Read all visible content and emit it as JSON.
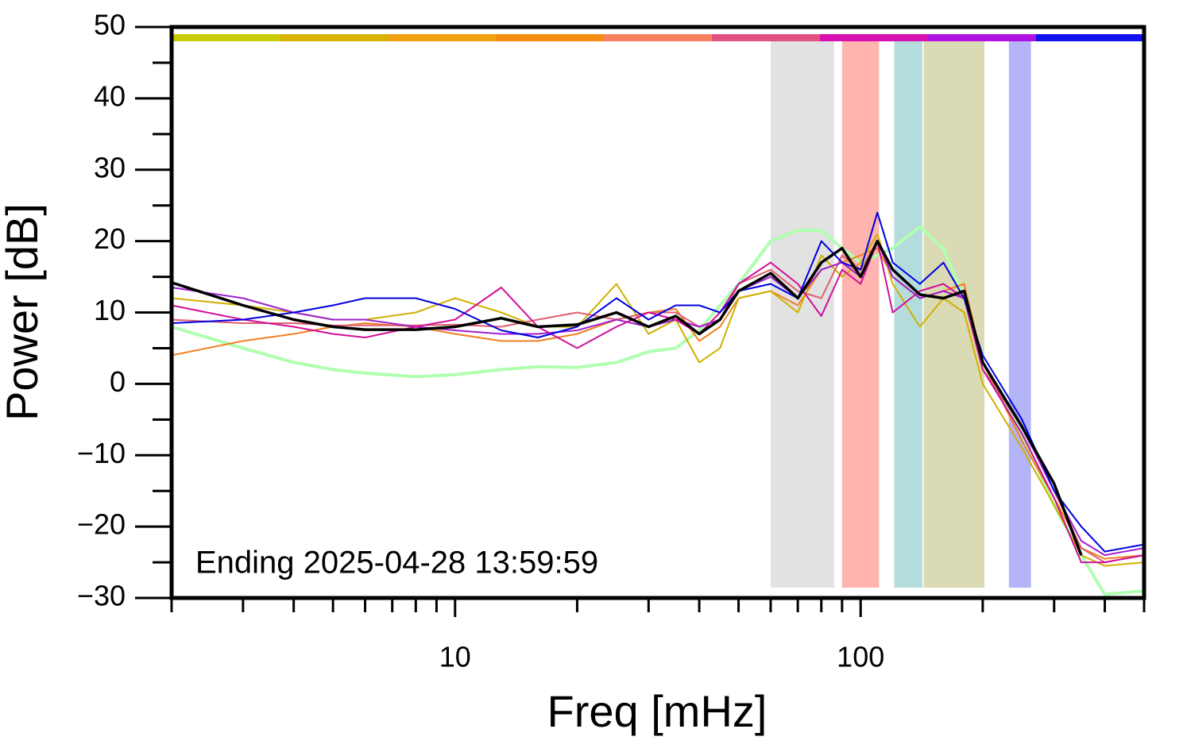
{
  "chart_data": {
    "type": "line",
    "xlabel": "Freq [mHz]",
    "ylabel": "Power [dB]",
    "annotation": "Ending 2025-04-28 13:59:59",
    "log_x": true,
    "xlim": [
      2,
      500
    ],
    "ylim": [
      -30,
      50
    ],
    "xticks": [
      10,
      100
    ],
    "xminorticks": [
      2,
      3,
      4,
      5,
      6,
      7,
      8,
      9,
      20,
      30,
      40,
      50,
      60,
      70,
      80,
      90,
      200,
      300,
      400,
      500
    ],
    "yticks": [
      {
        "value": -30,
        "label": "−30"
      },
      {
        "value": -20,
        "label": "−20"
      },
      {
        "value": -10,
        "label": "−10"
      },
      0,
      10,
      20,
      30,
      40,
      50
    ],
    "yminorticks": [
      -25,
      -15,
      -5,
      5,
      15,
      25,
      35,
      45
    ],
    "color_bar": [
      "#c8cc00",
      "#d8b400",
      "#f0a010",
      "#f58c10",
      "#f88060",
      "#e05080",
      "#d810b0",
      "#b010e0",
      "#1010f0"
    ],
    "bands": [
      {
        "x0": 60,
        "x1": 86,
        "color": "#e2e2e2"
      },
      {
        "x0": 90,
        "x1": 111,
        "color": "#ffb4b0"
      },
      {
        "x0": 121,
        "x1": 142,
        "color": "#b4dcdc"
      },
      {
        "x0": 143,
        "x1": 202,
        "color": "#dadab4"
      },
      {
        "x0": 232,
        "x1": 263,
        "color": "#b4b4f8"
      }
    ],
    "x": [
      2,
      3,
      4,
      5,
      6,
      8,
      10,
      13,
      16,
      20,
      25,
      30,
      35,
      40,
      45,
      50,
      60,
      70,
      80,
      90,
      100,
      110,
      120,
      140,
      160,
      180,
      200,
      250,
      300,
      350,
      400,
      500
    ],
    "series": [
      {
        "color": "#b0ffb0",
        "values": [
          8,
          5,
          3,
          2,
          1.5,
          1,
          1.3,
          2,
          2.4,
          2.3,
          3,
          4.5,
          5,
          7.5,
          11,
          14,
          20,
          21.5,
          21.5,
          19,
          17,
          18,
          19,
          22,
          19,
          12,
          3,
          -7,
          -17,
          -24,
          -29.5,
          -29
        ]
      },
      {
        "color": "#f08020",
        "values": [
          4,
          6,
          7,
          8,
          8.5,
          8,
          7,
          6,
          6,
          7,
          9,
          10,
          10.5,
          6,
          8,
          12,
          13,
          11,
          16,
          17,
          18,
          19,
          15,
          12,
          13,
          14,
          3,
          -8,
          -16,
          -23,
          -24.5,
          -24
        ]
      },
      {
        "color": "#d0b000",
        "values": [
          12,
          11,
          10,
          9,
          9,
          10,
          12,
          10,
          8,
          8,
          14,
          7,
          9,
          3,
          5,
          12,
          13,
          10,
          18,
          15,
          17,
          21,
          14,
          8,
          12,
          10,
          0,
          -9,
          -17,
          -24,
          -25.5,
          -25
        ]
      },
      {
        "color": "#e06070",
        "values": [
          9,
          8.5,
          8.5,
          8.2,
          8.2,
          8.2,
          8.3,
          8,
          9,
          10,
          9,
          10,
          10,
          8,
          9,
          14,
          16,
          13,
          12,
          18,
          16,
          20,
          15,
          12,
          13,
          12,
          2,
          -6,
          -15,
          -23,
          -25,
          -24
        ]
      },
      {
        "color": "#a020d0",
        "values": [
          13.5,
          12,
          10,
          9,
          9,
          8,
          7.5,
          7,
          7,
          7.5,
          9,
          8,
          9,
          8,
          9,
          13,
          15,
          12,
          16,
          17,
          15,
          20,
          15,
          12,
          13,
          12,
          3,
          -6,
          -15,
          -22,
          -24,
          -23
        ]
      },
      {
        "color": "#d0109a",
        "values": [
          11,
          9,
          8,
          7,
          6.5,
          8,
          9,
          13.5,
          8,
          5,
          8,
          10,
          9,
          7,
          10,
          14,
          17,
          14,
          9.5,
          16,
          14,
          20,
          10,
          13,
          14,
          12,
          2,
          -7,
          -16,
          -25,
          -25,
          -24
        ]
      },
      {
        "color": "#0000e0",
        "values": [
          8.5,
          9,
          10,
          11,
          12,
          12,
          10.5,
          7.5,
          6.5,
          8,
          12,
          9,
          11,
          11,
          10,
          13,
          14,
          12,
          20,
          17,
          16,
          24,
          17,
          14,
          17,
          12,
          4,
          -5,
          -15,
          -20,
          -23.5,
          -22.5
        ]
      },
      {
        "color": "#000000",
        "values": [
          14.2,
          11,
          9,
          8,
          7.6,
          7.6,
          8,
          9.2,
          8,
          8.3,
          10,
          8,
          9.5,
          7,
          9,
          13,
          15.5,
          12,
          17,
          19,
          15,
          20,
          16,
          12.5,
          12,
          13,
          3,
          -6,
          -14,
          -24,
          null,
          null
        ]
      }
    ]
  }
}
